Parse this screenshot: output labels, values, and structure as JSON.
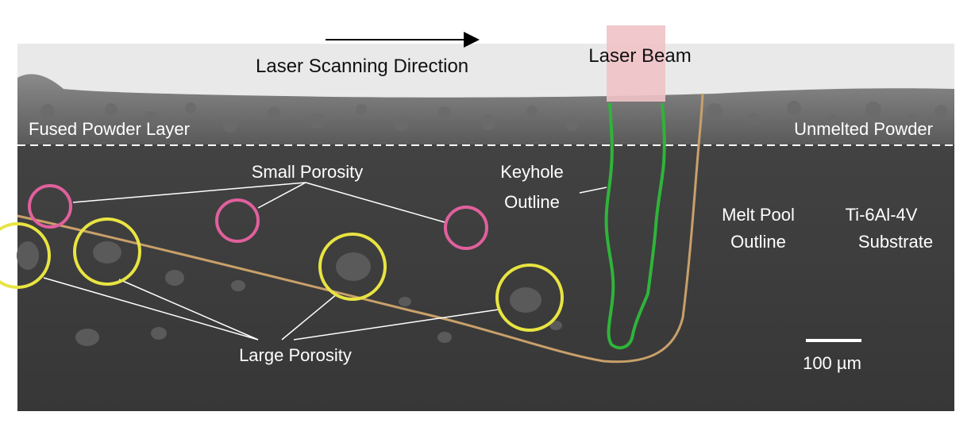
{
  "labels": {
    "scan_direction": "Laser Scanning Direction",
    "laser_beam": "Laser Beam",
    "fused_layer": "Fused Powder Layer",
    "unmelted": "Unmelted Powder",
    "small_porosity": "Small Porosity",
    "large_porosity": "Large Porosity",
    "keyhole_line1": "Keyhole",
    "keyhole_line2": "Outline",
    "meltpool_line1": "Melt Pool",
    "meltpool_line2": "Outline",
    "material_line1": "Ti-6Al-4V",
    "material_line2": "Substrate",
    "scale_bar": "100 µm"
  },
  "colors": {
    "small_pore_circle": "#e0609c",
    "large_pore_circle": "#e8e442",
    "keyhole_outline": "#2fb43a",
    "melt_pool_outline": "#c9a06a",
    "laser_beam_fill": "#efc3c8",
    "leader_lines": "#ffffff",
    "substrate": "#3b3b3b"
  }
}
